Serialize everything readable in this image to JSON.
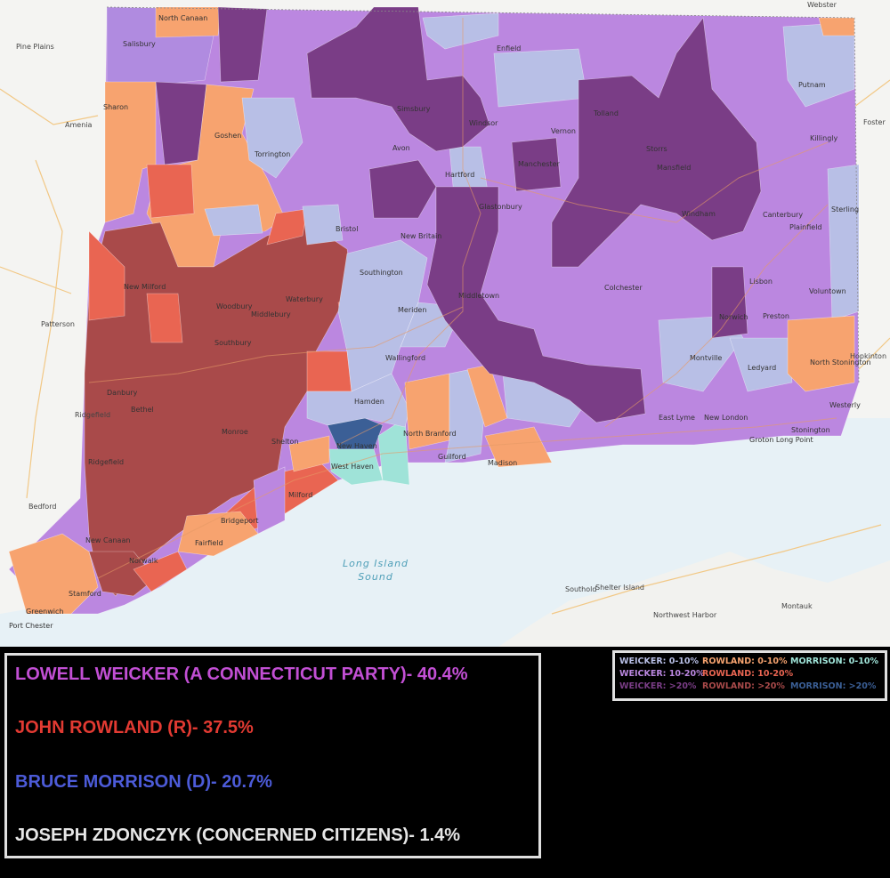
{
  "map": {
    "water_label_line1": "Long Island",
    "water_label_line2": "Sound",
    "places": [
      {
        "name": "North Canaan"
      },
      {
        "name": "Salisbury"
      },
      {
        "name": "Enfield"
      },
      {
        "name": "Putnam"
      },
      {
        "name": "Sharon"
      },
      {
        "name": "Simsbury"
      },
      {
        "name": "Windsor"
      },
      {
        "name": "Tolland"
      },
      {
        "name": "Goshen"
      },
      {
        "name": "Vernon"
      },
      {
        "name": "Killingly"
      },
      {
        "name": "Torrington"
      },
      {
        "name": "Avon"
      },
      {
        "name": "Manchester"
      },
      {
        "name": "Storrs"
      },
      {
        "name": "Mansfield"
      },
      {
        "name": "Hartford"
      },
      {
        "name": "Glastonbury"
      },
      {
        "name": "Windham"
      },
      {
        "name": "Canterbury"
      },
      {
        "name": "Sterling"
      },
      {
        "name": "Bristol"
      },
      {
        "name": "New Britain"
      },
      {
        "name": "Plainfield"
      },
      {
        "name": "New Milford"
      },
      {
        "name": "Southington"
      },
      {
        "name": "Colchester"
      },
      {
        "name": "Lisbon"
      },
      {
        "name": "Voluntown"
      },
      {
        "name": "Waterbury"
      },
      {
        "name": "Woodbury"
      },
      {
        "name": "Middlebury"
      },
      {
        "name": "Middletown"
      },
      {
        "name": "Meriden"
      },
      {
        "name": "Norwich"
      },
      {
        "name": "Preston"
      },
      {
        "name": "Southbury"
      },
      {
        "name": "Wallingford"
      },
      {
        "name": "Montville"
      },
      {
        "name": "Ledyard"
      },
      {
        "name": "North Stonington"
      },
      {
        "name": "Danbury"
      },
      {
        "name": "Bethel"
      },
      {
        "name": "Hamden"
      },
      {
        "name": "Westerly"
      },
      {
        "name": "Monroe"
      },
      {
        "name": "East Lyme"
      },
      {
        "name": "New London"
      },
      {
        "name": "New Haven"
      },
      {
        "name": "North Branford"
      },
      {
        "name": "Shelton"
      },
      {
        "name": "Ridgefield"
      },
      {
        "name": "West Haven"
      },
      {
        "name": "Guilford"
      },
      {
        "name": "Madison"
      },
      {
        "name": "Milford"
      },
      {
        "name": "Stonington"
      },
      {
        "name": "Groton Long Point"
      },
      {
        "name": "Bridgeport"
      },
      {
        "name": "New Canaan"
      },
      {
        "name": "Fairfield"
      },
      {
        "name": "Norwalk"
      },
      {
        "name": "Stamford"
      },
      {
        "name": "Greenwich"
      },
      {
        "name": "Port Chester"
      }
    ],
    "outside_places": [
      {
        "name": "Webster"
      },
      {
        "name": "Pine Plains"
      },
      {
        "name": "Amenia"
      },
      {
        "name": "Foster"
      },
      {
        "name": "Patterson"
      },
      {
        "name": "Ridgefield"
      },
      {
        "name": "Bedford"
      },
      {
        "name": "Hopkinton"
      },
      {
        "name": "Southold"
      },
      {
        "name": "Shelter Island"
      },
      {
        "name": "Northwest Harbor"
      },
      {
        "name": "Montauk"
      }
    ]
  },
  "results": {
    "line1": "LOWELL WEICKER (A CONNECTICUT PARTY)- 40.4%",
    "line2": "JOHN ROWLAND (R)- 37.5%",
    "line3": "BRUCE MORRISON (D)- 20.7%",
    "line4": "JOSEPH ZDONCZYK (CONCERNED CITIZENS)- 1.4%",
    "color1": "#c24fd4",
    "color2": "#e23a32",
    "color3": "#4c5bd8",
    "color4": "#e6e6e6"
  },
  "legend": {
    "w1": "WEICKER: 0-10%",
    "w2": "WEICKER: 10-20%",
    "w3": "WEICKER: >20%",
    "r1": "ROWLAND: 0-10%",
    "r2": "ROWLAND: 10-20%",
    "r3": "ROWLAND: >20%",
    "m1": "MORRISON: 0-10%",
    "m3": "MORRISON: >20%",
    "colors": {
      "weicker_0_10": "#b8bfe6",
      "weicker_10_20": "#bb87e0",
      "weicker_gt20": "#7a3d86",
      "rowland_0_10": "#f7a36f",
      "rowland_10_20": "#e96552",
      "rowland_gt20": "#a94a4a",
      "morrison_0_10": "#9fe3d8",
      "morrison_gt20": "#3b5f96"
    }
  }
}
